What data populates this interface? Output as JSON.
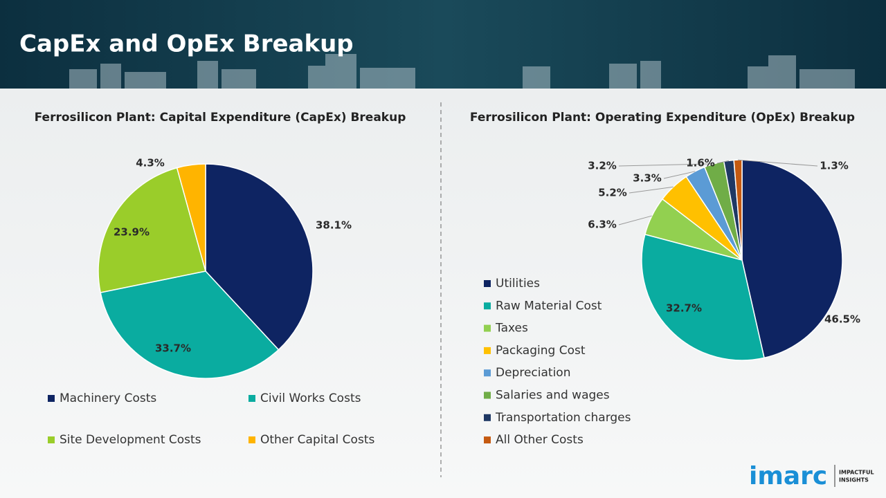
{
  "header": {
    "title": "CapEx and OpEx Breakup"
  },
  "logo": {
    "name": "imarc",
    "tagline_1": "IMPACTFUL",
    "tagline_2": "INSIGHTS"
  },
  "chart_data": [
    {
      "type": "pie",
      "title": "Ferrosilicon Plant: Capital Expenditure (CapEx) Breakup",
      "categories": [
        "Machinery Costs",
        "Civil Works Costs",
        "Site Development Costs",
        "Other Capital Costs"
      ],
      "values": [
        38.1,
        33.7,
        23.9,
        4.3
      ],
      "value_labels": [
        "38.1%",
        "33.7%",
        "23.9%",
        "4.3%"
      ],
      "colors": [
        "#0e2462",
        "#0aaca0",
        "#9acd2a",
        "#ffb400"
      ]
    },
    {
      "type": "pie",
      "title": "Ferrosilicon Plant: Operating Expenditure (OpEx) Breakup",
      "categories": [
        "Utilities",
        "Raw Material Cost",
        "Taxes",
        "Packaging Cost",
        "Depreciation",
        "Salaries and wages",
        "Transportation charges",
        "All Other Costs"
      ],
      "values": [
        46.5,
        32.7,
        6.3,
        5.2,
        3.3,
        3.2,
        1.6,
        1.3
      ],
      "value_labels": [
        "46.5%",
        "32.7%",
        "6.3%",
        "5.2%",
        "3.3%",
        "3.2%",
        "1.6%",
        "1.3%"
      ],
      "colors": [
        "#0e2462",
        "#0aaca0",
        "#92d050",
        "#ffc000",
        "#5b9bd5",
        "#70ad47",
        "#1f3864",
        "#c55a11"
      ]
    }
  ]
}
